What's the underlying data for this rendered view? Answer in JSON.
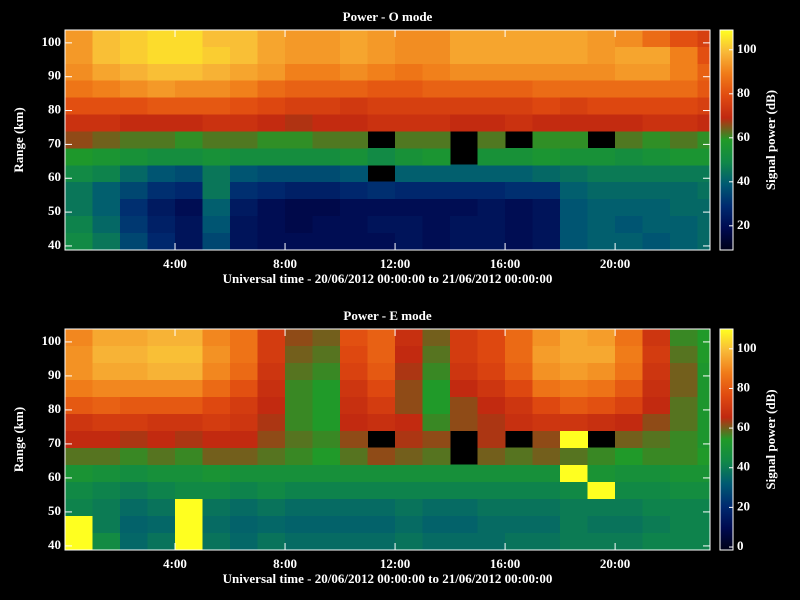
{
  "chart_data": [
    {
      "type": "heatmap",
      "title": "Power - O mode",
      "xlabel": "Universal time - 20/06/2012 00:00:00 to 21/06/2012 00:00:00",
      "ylabel": "Range (km)",
      "colorbar_label": "Signal power (dB)",
      "x": [
        0,
        1,
        2,
        3,
        4,
        5,
        6,
        7,
        8,
        9,
        10,
        11,
        12,
        13,
        14,
        15,
        16,
        17,
        18,
        19,
        20,
        21,
        22,
        23
      ],
      "y": [
        39,
        44,
        49,
        54,
        59,
        64,
        69,
        74,
        79,
        84,
        89,
        94,
        99
      ],
      "z": [
        [
          50,
          45,
          35,
          28,
          22,
          35,
          22,
          20,
          20,
          20,
          20,
          20,
          22,
          20,
          22,
          22,
          20,
          22,
          38,
          40,
          40,
          38,
          40,
          42
        ],
        [
          48,
          42,
          32,
          26,
          22,
          38,
          22,
          20,
          18,
          20,
          20,
          22,
          22,
          20,
          22,
          22,
          20,
          22,
          38,
          40,
          38,
          40,
          40,
          42
        ],
        [
          45,
          40,
          30,
          24,
          20,
          40,
          24,
          20,
          18,
          18,
          20,
          20,
          20,
          20,
          20,
          22,
          20,
          22,
          38,
          40,
          40,
          40,
          42,
          42
        ],
        [
          45,
          40,
          35,
          30,
          28,
          45,
          30,
          28,
          26,
          26,
          28,
          30,
          28,
          28,
          28,
          28,
          30,
          30,
          40,
          42,
          42,
          42,
          42,
          44
        ],
        [
          50,
          48,
          42,
          38,
          36,
          45,
          38,
          36,
          36,
          36,
          38,
          null,
          40,
          40,
          40,
          40,
          40,
          42,
          44,
          46,
          46,
          46,
          46,
          46
        ],
        [
          58,
          56,
          54,
          52,
          52,
          54,
          52,
          52,
          52,
          52,
          54,
          50,
          54,
          56,
          null,
          54,
          54,
          56,
          54,
          54,
          52,
          54,
          56,
          56
        ],
        [
          66,
          64,
          62,
          62,
          60,
          62,
          62,
          60,
          60,
          62,
          62,
          null,
          62,
          62,
          null,
          62,
          null,
          60,
          60,
          null,
          62,
          60,
          62,
          60
        ],
        [
          72,
          72,
          70,
          70,
          70,
          72,
          72,
          70,
          68,
          70,
          70,
          72,
          72,
          72,
          70,
          70,
          72,
          70,
          70,
          70,
          70,
          72,
          72,
          70
        ],
        [
          80,
          80,
          80,
          82,
          82,
          82,
          80,
          78,
          76,
          76,
          74,
          76,
          76,
          76,
          76,
          76,
          76,
          78,
          76,
          78,
          78,
          78,
          78,
          76
        ],
        [
          88,
          90,
          92,
          94,
          92,
          92,
          90,
          86,
          84,
          84,
          84,
          82,
          82,
          84,
          84,
          84,
          84,
          86,
          86,
          86,
          86,
          86,
          86,
          82
        ],
        [
          92,
          96,
          98,
          100,
          100,
          98,
          96,
          94,
          90,
          90,
          92,
          90,
          88,
          90,
          92,
          92,
          92,
          92,
          92,
          92,
          94,
          94,
          90,
          84
        ],
        [
          94,
          100,
          102,
          104,
          104,
          102,
          100,
          96,
          94,
          94,
          96,
          94,
          92,
          92,
          96,
          96,
          96,
          96,
          96,
          94,
          96,
          96,
          90,
          80
        ],
        [
          94,
          100,
          102,
          104,
          104,
          100,
          100,
          96,
          94,
          94,
          96,
          94,
          92,
          92,
          96,
          96,
          96,
          96,
          96,
          94,
          92,
          86,
          80,
          76
        ]
      ],
      "xlim": [
        0,
        23.45
      ],
      "ylim": [
        38.8,
        103.8
      ],
      "xticks": [
        {
          "value": 4,
          "label": "4:00"
        },
        {
          "value": 8,
          "label": "8:00"
        },
        {
          "value": 12,
          "label": "12:00"
        },
        {
          "value": 16,
          "label": "16:00"
        },
        {
          "value": 20,
          "label": "20:00"
        }
      ],
      "yticks": [
        40,
        50,
        60,
        70,
        80,
        90,
        100
      ],
      "clim": [
        9,
        109
      ],
      "cticks": [
        20,
        40,
        60,
        80,
        100
      ],
      "colormap": [
        "#000018",
        "#000a50",
        "#002a70",
        "#005a72",
        "#108848",
        "#209a28",
        "#c02810",
        "#e04a10",
        "#f07a18",
        "#f8b838",
        "#ffff20"
      ]
    },
    {
      "type": "heatmap",
      "title": "Power - E mode",
      "xlabel": "Universal time - 20/06/2012 00:00:00 to 21/06/2012 00:00:00",
      "ylabel": "Range (km)",
      "colorbar_label": "Signal power (dB)",
      "x": [
        0,
        1,
        2,
        3,
        4,
        5,
        6,
        7,
        8,
        9,
        10,
        11,
        12,
        13,
        14,
        15,
        16,
        17,
        18,
        19,
        20,
        21,
        22,
        23
      ],
      "y": [
        39,
        44,
        49,
        54,
        59,
        64,
        69,
        74,
        79,
        84,
        89,
        94,
        99
      ],
      "z": [
        [
          110,
          45,
          35,
          38,
          110,
          38,
          35,
          38,
          36,
          36,
          36,
          36,
          38,
          36,
          36,
          36,
          38,
          38,
          40,
          40,
          40,
          42,
          42,
          42
        ],
        [
          110,
          40,
          34,
          35,
          110,
          36,
          34,
          35,
          34,
          34,
          34,
          34,
          36,
          34,
          34,
          36,
          36,
          36,
          40,
          38,
          38,
          40,
          42,
          42
        ],
        [
          42,
          40,
          36,
          38,
          110,
          38,
          36,
          38,
          36,
          36,
          36,
          36,
          38,
          36,
          36,
          38,
          38,
          38,
          40,
          40,
          40,
          42,
          42,
          42
        ],
        [
          44,
          42,
          40,
          42,
          44,
          44,
          42,
          44,
          42,
          42,
          42,
          42,
          42,
          42,
          42,
          42,
          42,
          42,
          44,
          110,
          44,
          44,
          46,
          46
        ],
        [
          50,
          48,
          46,
          48,
          48,
          50,
          48,
          48,
          48,
          48,
          48,
          48,
          48,
          48,
          48,
          48,
          48,
          48,
          110,
          50,
          48,
          48,
          50,
          50
        ],
        [
          58,
          58,
          56,
          58,
          56,
          60,
          60,
          58,
          56,
          54,
          58,
          62,
          60,
          58,
          null,
          60,
          58,
          60,
          58,
          56,
          54,
          56,
          56,
          54
        ],
        [
          66,
          66,
          64,
          66,
          64,
          66,
          66,
          62,
          58,
          56,
          62,
          null,
          64,
          62,
          null,
          64,
          null,
          62,
          110,
          null,
          60,
          58,
          56,
          52
        ],
        [
          70,
          72,
          72,
          70,
          70,
          72,
          70,
          64,
          56,
          54,
          66,
          68,
          66,
          56,
          62,
          64,
          68,
          70,
          70,
          68,
          66,
          62,
          58,
          52
        ],
        [
          80,
          82,
          80,
          80,
          80,
          76,
          72,
          66,
          56,
          54,
          68,
          72,
          62,
          54,
          62,
          66,
          70,
          76,
          80,
          78,
          74,
          66,
          58,
          52
        ],
        [
          88,
          90,
          90,
          90,
          90,
          84,
          78,
          68,
          56,
          54,
          70,
          76,
          62,
          54,
          66,
          70,
          76,
          86,
          88,
          86,
          80,
          68,
          60,
          52
        ],
        [
          92,
          96,
          96,
          98,
          98,
          90,
          84,
          70,
          58,
          56,
          74,
          80,
          64,
          56,
          70,
          74,
          82,
          92,
          94,
          92,
          86,
          70,
          60,
          52
        ],
        [
          92,
          98,
          98,
          100,
          100,
          92,
          86,
          72,
          60,
          58,
          76,
          82,
          66,
          58,
          72,
          76,
          84,
          94,
          96,
          96,
          88,
          72,
          58,
          54
        ],
        [
          90,
          96,
          96,
          98,
          98,
          90,
          86,
          72,
          62,
          60,
          78,
          82,
          68,
          60,
          72,
          76,
          84,
          92,
          96,
          94,
          86,
          70,
          56,
          54
        ]
      ],
      "xlim": [
        0,
        23.45
      ],
      "ylim": [
        38.8,
        103.8
      ],
      "xticks": [
        {
          "value": 4,
          "label": "4:00"
        },
        {
          "value": 8,
          "label": "8:00"
        },
        {
          "value": 12,
          "label": "12:00"
        },
        {
          "value": 16,
          "label": "16:00"
        },
        {
          "value": 20,
          "label": "20:00"
        }
      ],
      "yticks": [
        40,
        50,
        60,
        70,
        80,
        90,
        100
      ],
      "clim": [
        -1.5,
        110
      ],
      "cticks": [
        0,
        20,
        40,
        60,
        80,
        100
      ],
      "colormap": [
        "#000018",
        "#000a50",
        "#002a70",
        "#005a72",
        "#108848",
        "#209a28",
        "#c02810",
        "#e04a10",
        "#f07a18",
        "#f8b838",
        "#ffff20"
      ]
    }
  ]
}
